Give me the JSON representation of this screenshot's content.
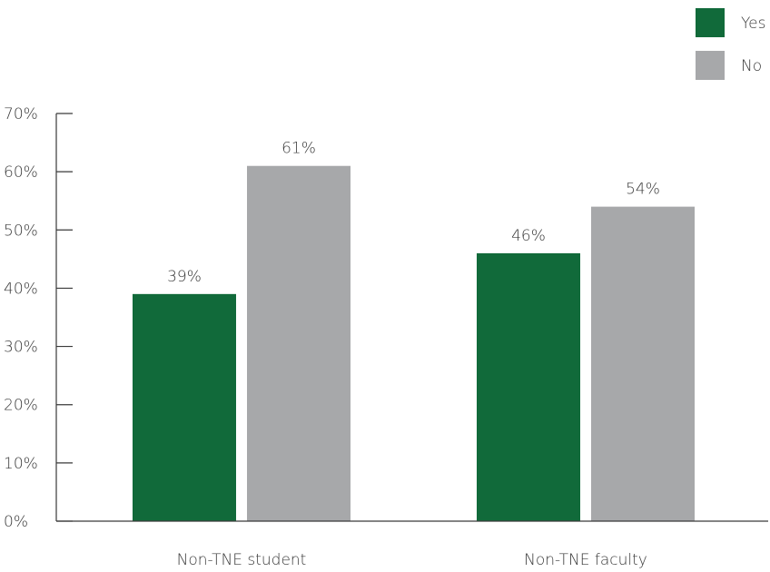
{
  "chart_data": {
    "type": "bar",
    "categories": [
      "Non-TNE student",
      "Non-TNE faculty"
    ],
    "series": [
      {
        "name": "Yes",
        "values": [
          39,
          46
        ],
        "color": "#116a3a"
      },
      {
        "name": "No",
        "values": [
          61,
          54
        ],
        "color": "#a7a8aa"
      }
    ],
    "data_labels": [
      [
        "39%",
        "46%"
      ],
      [
        "61%",
        "54%"
      ]
    ],
    "ylim": [
      0,
      70
    ],
    "yticks": [
      0,
      10,
      20,
      30,
      40,
      50,
      60,
      70
    ],
    "ytick_labels": [
      "0%",
      "10%",
      "20%",
      "30%",
      "40%",
      "50%",
      "60%",
      "70%"
    ],
    "legend_position": "top-right",
    "grid": false,
    "title": "",
    "xlabel": "",
    "ylabel": ""
  }
}
